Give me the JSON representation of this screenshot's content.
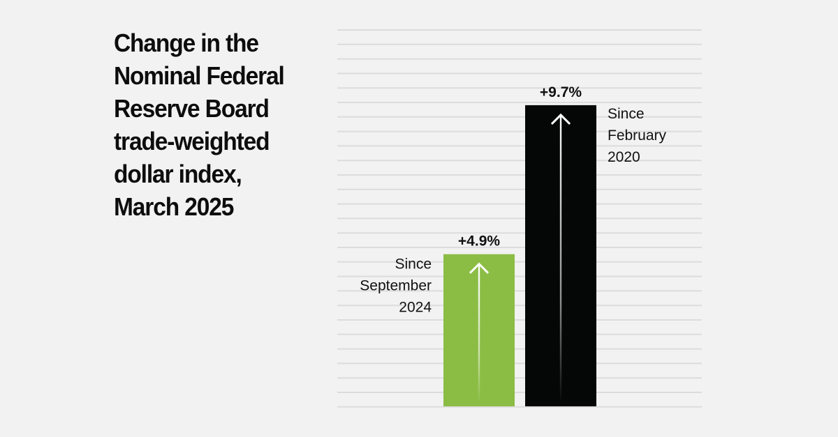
{
  "title": "Change in the Nominal Federal Reserve Board trade-weighted dollar index, March 2025",
  "colors": {
    "background": "#f2f2f2",
    "gridline": "#dcdcdc",
    "bar_green": "#8bbd45",
    "bar_black": "#050606",
    "arrow": "#ffffff",
    "text": "#111111"
  },
  "chart_data": {
    "type": "bar",
    "title": "Change in the Nominal Federal Reserve Board trade-weighted dollar index, March 2025",
    "categories": [
      "Since September 2024",
      "Since February 2020"
    ],
    "category_lines": [
      [
        "Since",
        "September",
        "2024"
      ],
      [
        "Since",
        "February",
        "2020"
      ]
    ],
    "values": [
      4.9,
      9.7
    ],
    "value_labels": [
      "+4.9%",
      "+9.7%"
    ],
    "bar_colors": [
      "#8bbd45",
      "#050606"
    ],
    "ylim": [
      0,
      11
    ],
    "grid": true,
    "xlabel": "",
    "ylabel": "",
    "legend": "none",
    "annotations": [
      "upward arrow inside each bar"
    ]
  }
}
